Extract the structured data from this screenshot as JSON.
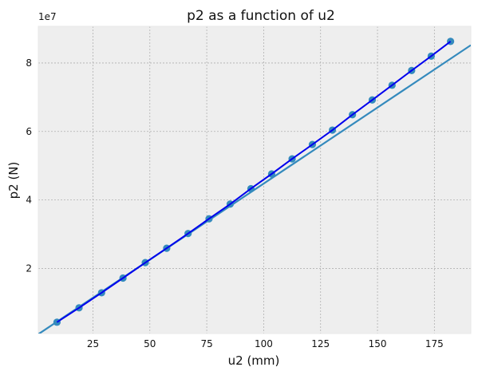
{
  "chart_data": {
    "type": "line",
    "title": "p2 as a function of u2",
    "xlabel": "u2 (mm)",
    "ylabel": "p2 (N)",
    "y_offset_label": "1e7",
    "xlim": [
      1,
      191
    ],
    "ylim": [
      1000000.0,
      90700000.0
    ],
    "xticks": [
      25,
      50,
      75,
      100,
      125,
      150,
      175
    ],
    "yticks": [
      20000000,
      40000000,
      60000000,
      80000000
    ],
    "xtick_labels": [
      "25",
      "50",
      "75",
      "100",
      "125",
      "150",
      "175"
    ],
    "ytick_labels": [
      "2",
      "4",
      "6",
      "8"
    ],
    "grid": true,
    "legend": "none",
    "colors": {
      "background": "#eeeeee",
      "points": "#348abd",
      "fit_line": "#0000ee",
      "linear_line": "#348abd",
      "grid": "#b0b0b0"
    },
    "series": [
      {
        "type": "scatter",
        "x": [
          9.2,
          18.9,
          28.8,
          38.2,
          48.0,
          57.4,
          66.8,
          76.0,
          85.3,
          94.4,
          103.5,
          112.5,
          121.4,
          130.2,
          139.0,
          147.7,
          156.4,
          165.0,
          173.6,
          182.1
        ],
        "y": [
          4300000,
          8500000,
          12900000,
          17200000,
          21700000,
          25900000,
          30200000,
          34500000,
          38800000,
          43300000,
          47600000,
          52000000,
          56200000,
          60400000,
          64900000,
          69200000,
          73500000,
          77800000,
          82000000,
          86300000
        ]
      },
      {
        "type": "line",
        "x": [
          9.2,
          18.9,
          28.8,
          38.2,
          48.0,
          57.4,
          66.8,
          76.0,
          85.3,
          94.4,
          103.5,
          112.5,
          121.4,
          130.2,
          139.0,
          147.7,
          156.4,
          165.0,
          173.6,
          182.1
        ],
        "y": [
          4300000,
          8500000,
          12900000,
          17200000,
          21700000,
          25900000,
          30200000,
          34500000,
          38800000,
          43300000,
          47600000,
          52000000,
          56200000,
          60400000,
          64900000,
          69200000,
          73500000,
          77800000,
          82000000,
          86300000
        ]
      },
      {
        "type": "line",
        "x": [
          1,
          191
        ],
        "y": [
          800000,
          85200000
        ]
      }
    ]
  }
}
